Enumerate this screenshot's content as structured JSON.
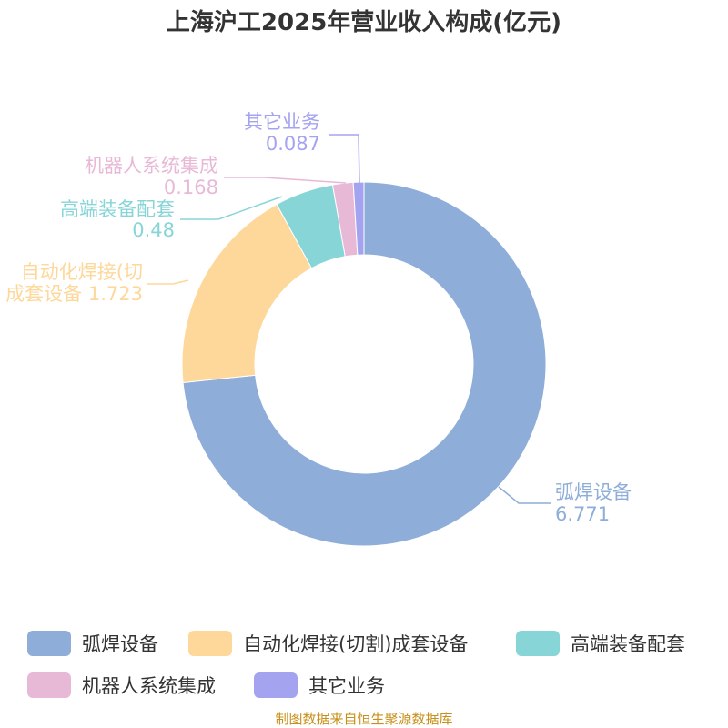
{
  "chart_data": {
    "type": "pie",
    "title": "上海沪工2025年营业收入构成(亿元)",
    "donut": true,
    "categories": [
      "弧焊设备",
      "自动化焊接(切割)成套设备",
      "高端装备配套",
      "机器人系统集成",
      "其它业务"
    ],
    "values": [
      6.771,
      1.723,
      0.48,
      0.168,
      0.087
    ],
    "value_labels": [
      "6.771",
      "1.723",
      "0.48",
      "0.168",
      "0.087"
    ],
    "callout_names": [
      "弧焊设备",
      "自动化焊接(切",
      "高端装备配套",
      "机器人系统集成",
      "其它业务"
    ],
    "callout_name_line2": "成套设备",
    "colors": [
      "#8eadd9",
      "#fdd89a",
      "#88d5d8",
      "#e8b9d7",
      "#a4a3f0"
    ],
    "legend_position": "bottom",
    "source": "制图数据来自恒生聚源数据库"
  }
}
